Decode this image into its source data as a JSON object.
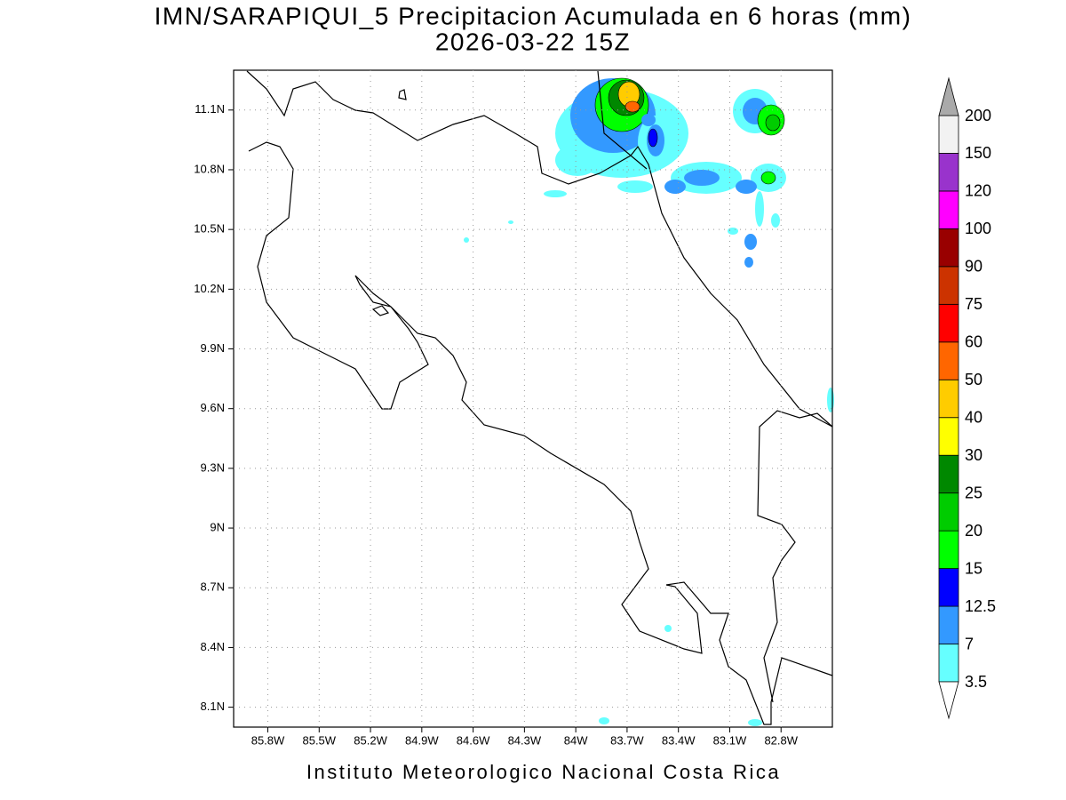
{
  "chart_data": {
    "type": "map",
    "title": "IMN/SARAPIQUI_5 Precipitacion Acumulada en 6 horas (mm)",
    "subtitle": "2026-03-22 15Z",
    "footer": "Instituto Meteorologico Nacional Costa Rica",
    "xlim": [
      -86.0,
      -82.5
    ],
    "ylim": [
      8.0,
      11.3
    ],
    "xticks": [
      {
        "value": -85.8,
        "label": "85.8W"
      },
      {
        "value": -85.5,
        "label": "85.5W"
      },
      {
        "value": -85.2,
        "label": "85.2W"
      },
      {
        "value": -84.9,
        "label": "84.9W"
      },
      {
        "value": -84.6,
        "label": "84.6W"
      },
      {
        "value": -84.3,
        "label": "84.3W"
      },
      {
        "value": -84.0,
        "label": "84W"
      },
      {
        "value": -83.7,
        "label": "83.7W"
      },
      {
        "value": -83.4,
        "label": "83.4W"
      },
      {
        "value": -83.1,
        "label": "83.1W"
      },
      {
        "value": -82.8,
        "label": "82.8W"
      }
    ],
    "yticks": [
      {
        "value": 8.1,
        "label": "8.1N"
      },
      {
        "value": 8.4,
        "label": "8.4N"
      },
      {
        "value": 8.7,
        "label": "8.7N"
      },
      {
        "value": 9.0,
        "label": "9N"
      },
      {
        "value": 9.3,
        "label": "9.3N"
      },
      {
        "value": 9.6,
        "label": "9.6N"
      },
      {
        "value": 9.9,
        "label": "9.9N"
      },
      {
        "value": 10.2,
        "label": "10.2N"
      },
      {
        "value": 10.5,
        "label": "10.5N"
      },
      {
        "value": 10.8,
        "label": "10.8N"
      },
      {
        "value": 11.1,
        "label": "11.1N"
      }
    ],
    "grid": true,
    "colorbar": {
      "levels": [
        3.5,
        7,
        12.5,
        15,
        20,
        25,
        30,
        40,
        50,
        60,
        75,
        90,
        100,
        120,
        150,
        200
      ],
      "colors": [
        "#ffffff",
        "#66ffff",
        "#3399ff",
        "#0000ff",
        "#00ff00",
        "#00cc00",
        "#008800",
        "#ffff00",
        "#ffcc00",
        "#ff6600",
        "#ff0000",
        "#cc3300",
        "#990000",
        "#ff00ff",
        "#9933cc",
        "#f2f2f2",
        "#aaaaaa"
      ]
    }
  }
}
